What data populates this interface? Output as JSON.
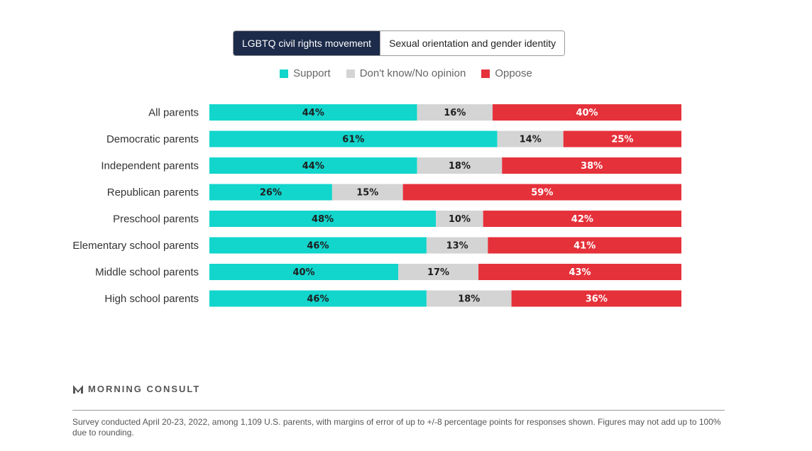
{
  "toggle": {
    "active_label": "LGBTQ civil rights movement",
    "inactive_label": "Sexual orientation and gender identity"
  },
  "legend": {
    "support": "Support",
    "dont_know": "Don't know/No opinion",
    "oppose": "Oppose"
  },
  "colors": {
    "support": "#12d5cc",
    "dont_know": "#d4d4d4",
    "oppose": "#e5313a"
  },
  "chart_data": {
    "type": "bar",
    "orientation": "horizontal",
    "stacked": true,
    "categories": [
      "All parents",
      "Democratic parents",
      "Independent parents",
      "Republican parents",
      "Preschool parents",
      "Elementary school parents",
      "Middle school parents",
      "High school parents"
    ],
    "series": [
      {
        "name": "Support",
        "values": [
          44,
          61,
          44,
          26,
          48,
          46,
          40,
          46
        ]
      },
      {
        "name": "Don't know/No opinion",
        "values": [
          16,
          14,
          18,
          15,
          10,
          13,
          17,
          18
        ]
      },
      {
        "name": "Oppose",
        "values": [
          40,
          25,
          38,
          59,
          42,
          41,
          43,
          36
        ]
      }
    ],
    "xlim": [
      0,
      100
    ],
    "legend_position": "top",
    "grid": false
  },
  "brand": "MORNING CONSULT",
  "footnote": "Survey conducted April 20-23, 2022, among 1,109 U.S. parents, with margins of error of up to +/-8 percentage points for responses shown. Figures may not add up to 100% due to rounding."
}
